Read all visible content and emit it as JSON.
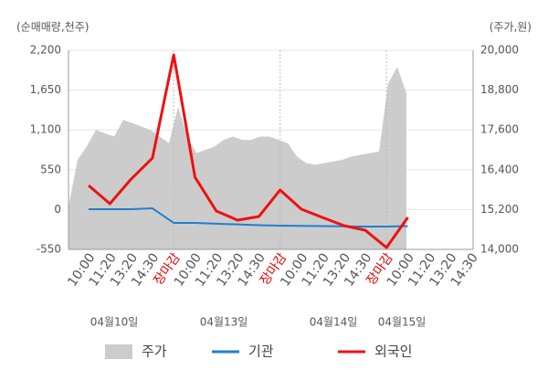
{
  "chart_data": {
    "type": "line",
    "ylabel": "(순매매량,천주)",
    "y2label": "(주가,원)",
    "categories": [
      "10:00",
      "11:20",
      "13:20",
      "14:30",
      "장마감",
      "10:00",
      "11:20",
      "13:20",
      "14:30",
      "장마감",
      "10:00",
      "11:20",
      "13:20",
      "14:30",
      "장마감",
      "10:00",
      "11:20",
      "13:20",
      "14:30"
    ],
    "highlight_color": "#e00000",
    "dates": [
      "04월10일",
      "04월13일",
      "04월14일",
      "04월15일"
    ],
    "ylim": [
      -550,
      2200
    ],
    "yticks": [
      -550,
      0,
      550,
      {
        "value": 1100,
        "label": "1,100"
      },
      {
        "value": 1650,
        "label": "1,650"
      },
      {
        "value": 2200,
        "label": "2,200"
      }
    ],
    "y2lim": [
      14000,
      20000
    ],
    "y2ticks": [
      {
        "value": 14000,
        "label": "14,000"
      },
      {
        "value": 15200,
        "label": "15,200"
      },
      {
        "value": 16400,
        "label": "16,400"
      },
      {
        "value": 17600,
        "label": "17,600"
      },
      {
        "value": 18800,
        "label": "18,800"
      },
      {
        "value": 20000,
        "label": "20,000"
      }
    ],
    "price": {
      "name": "주가",
      "color": "#cccccc",
      "axis": "y2",
      "values": [
        15300,
        16700,
        17100,
        17600,
        17500,
        17400,
        17900,
        17800,
        17700,
        17600,
        17400,
        17200,
        18300,
        17400,
        16900,
        17000,
        17100,
        17300,
        17400,
        17300,
        17300,
        17400,
        17400,
        17300,
        17200,
        16800,
        16600,
        16550,
        16600,
        16650,
        16700,
        16800,
        16850,
        16900,
        16950,
        19000,
        19500,
        18700
      ]
    },
    "series": [
      {
        "name": "기관",
        "color": "#1f7fd0",
        "values": [
          5,
          5,
          5,
          17,
          -184,
          -184,
          -195,
          -205,
          -215,
          -222,
          -225,
          -228,
          -232,
          -235,
          -235,
          -228,
          null,
          null,
          null
        ]
      },
      {
        "name": "외국인",
        "color": "#ee1111",
        "values": [
          333,
          81,
          421,
          711,
          2137,
          447,
          -20,
          -146,
          -96,
          270,
          5,
          -110,
          -222,
          -285,
          -525,
          -108,
          null,
          null,
          null
        ]
      }
    ]
  }
}
